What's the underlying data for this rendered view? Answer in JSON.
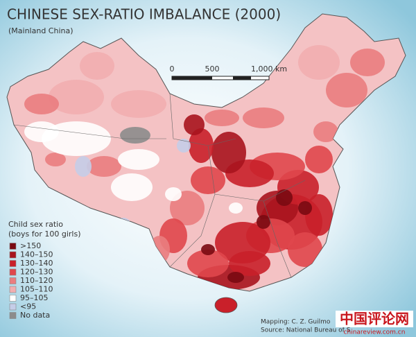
{
  "title": "CHINESE SEX-RATIO IMBALANCE (2000)",
  "subtitle": "(Mainland China)",
  "scale_bar": {
    "labels": [
      "0",
      "500",
      "1,000 km"
    ]
  },
  "legend": {
    "title_lines": [
      "Child sex ratio",
      "(boys for 100 girls)"
    ],
    "items": [
      {
        "label": ">150",
        "color": "#7a0a12"
      },
      {
        "label": "140–150",
        "color": "#a8141e"
      },
      {
        "label": "130–140",
        "color": "#c9202a"
      },
      {
        "label": "120–130",
        "color": "#e0474d"
      },
      {
        "label": "110–120",
        "color": "#ea7d80"
      },
      {
        "label": "105–110",
        "color": "#f2aeb0"
      },
      {
        "label": "95–105",
        "color": "#ffffff"
      },
      {
        "label": "<95",
        "color": "#c5cde8"
      },
      {
        "label": "No data",
        "color": "#8c8c8c"
      }
    ]
  },
  "credits": [
    "Mapping: C. Z. Guilmo",
    "Source: National Bureau of S"
  ],
  "watermark": {
    "title": "中国评论网",
    "url": "chinareview.com.cn"
  }
}
